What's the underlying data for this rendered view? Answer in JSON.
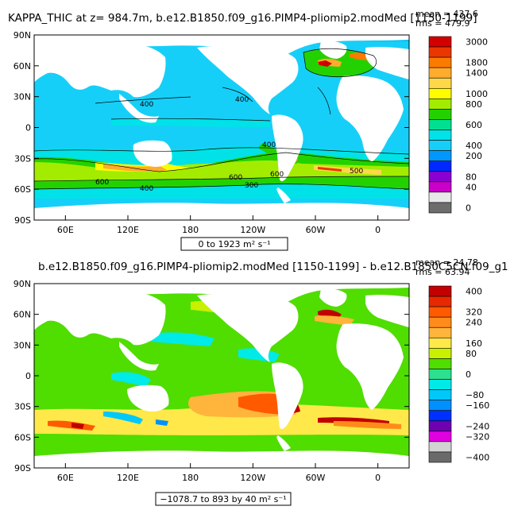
{
  "chart_data": [
    {
      "type": "heatmap",
      "title": "KAPPA_THIC at z= 984.7m, b.e12.B1850.f09_g16.PIMP4-pliomip2.modMed [1150-1199]",
      "stats": {
        "mean": "mean = 437.6",
        "rms": "rms = 479.9"
      },
      "x_ticks": [
        "60E",
        "120E",
        "180",
        "120W",
        "60W",
        "0"
      ],
      "y_ticks": [
        "90N",
        "60N",
        "30N",
        "0",
        "30S",
        "60S",
        "90S"
      ],
      "xlim": [
        30,
        390
      ],
      "ylim": [
        -90,
        90
      ],
      "range_label": "0 to 1923 m² s⁻¹",
      "contour_labels": [
        "400",
        "400",
        "400",
        "600",
        "600",
        "300",
        "400",
        "600",
        "500"
      ],
      "colorbar": {
        "labels": [
          "3000",
          "1800",
          "1400",
          "1000",
          "800",
          "600",
          "400",
          "200",
          "80",
          "40",
          "0"
        ],
        "colors": [
          "#d40000",
          "#ea3700",
          "#fb7a00",
          "#ffab2c",
          "#ffd84a",
          "#fffc00",
          "#a3ec00",
          "#24d100",
          "#00e090",
          "#00e2e8",
          "#16cff8",
          "#0098ff",
          "#0028ff",
          "#8a00d0",
          "#c800c8",
          "#e8e8e8",
          "#6d6d6d"
        ]
      }
    },
    {
      "type": "heatmap",
      "title": "b.e12.B1850.f09_g16.PIMP4-pliomip2.modMed [1150-1199] - b.e12.B1850C5CN.f09_g1",
      "stats": {
        "mean": "mean = 24.78",
        "rms": "rms = 63.94"
      },
      "x_ticks": [
        "60E",
        "120E",
        "180",
        "120W",
        "60W",
        "0"
      ],
      "y_ticks": [
        "90N",
        "60N",
        "30N",
        "0",
        "30S",
        "60S",
        "90S"
      ],
      "xlim": [
        30,
        390
      ],
      "ylim": [
        -90,
        90
      ],
      "range_label": "−1078.7 to 893 by 40 m² s⁻¹",
      "colorbar": {
        "labels": [
          "400",
          "320",
          "240",
          "160",
          "80",
          "0",
          "−80",
          "−160",
          "−240",
          "−320",
          "−400"
        ],
        "colors": [
          "#c20000",
          "#e82800",
          "#ff5a00",
          "#ff8c1a",
          "#ffb43c",
          "#ffe84a",
          "#c8f000",
          "#50dd00",
          "#2ce090",
          "#00eae8",
          "#00c8f8",
          "#0090ff",
          "#0030ff",
          "#7000b0",
          "#e000e0",
          "#d2d2d2",
          "#6a6a6a"
        ]
      }
    }
  ]
}
